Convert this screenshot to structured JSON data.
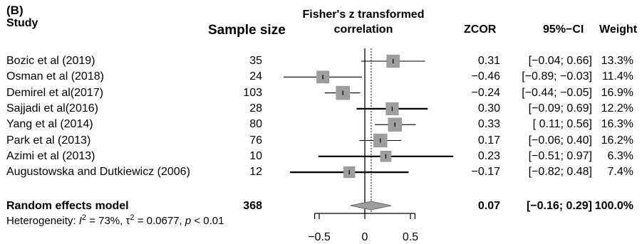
{
  "panel_label": "(B)",
  "headers": {
    "study": "Study",
    "sample_size": "Sample size",
    "plot_title_line1": "Fisher's z transformed",
    "plot_title_line2": "correlation",
    "zcor": "ZCOR",
    "ci": "95%−CI",
    "weight": "Weight"
  },
  "summary": {
    "label": "Random effects model",
    "n": "368",
    "zcor": "0.07",
    "ci": "[−0.16; 0.29]",
    "weight": "100.0%"
  },
  "heterogeneity": {
    "prefix": "Heterogeneity: ",
    "i2_symbol": "I",
    "i2_value": " = 73%, ",
    "tau2_symbol": "τ",
    "tau2_value": " = 0.0677, ",
    "p_symbol": "p",
    "p_value": " < 0.01"
  },
  "chart_data": {
    "type": "forest",
    "xlim": [
      -0.6,
      0.6
    ],
    "xticks": [
      -0.5,
      0,
      0.5
    ],
    "xtick_labels": [
      "−0.5",
      "0",
      "0.5"
    ],
    "null_line": 0,
    "pooled_line": 0.07,
    "studies": [
      {
        "name": "Bozic et al (2019)",
        "n": "35",
        "zcor": 0.31,
        "lo": -0.04,
        "hi": 0.66,
        "zcor_text": "0.31",
        "ci_text": "[−0.04; 0.66]",
        "weight": 13.3,
        "weight_text": "13.3%"
      },
      {
        "name": "Osman et al (2018)",
        "n": "24",
        "zcor": -0.46,
        "lo": -0.89,
        "hi": -0.03,
        "zcor_text": "−0.46",
        "ci_text": "[−0.89; −0.03]",
        "weight": 11.4,
        "weight_text": "11.4%"
      },
      {
        "name": "Demirel et al(2017)",
        "n": "103",
        "zcor": -0.24,
        "lo": -0.44,
        "hi": -0.05,
        "zcor_text": "−0.24",
        "ci_text": "[−0.44; −0.05]",
        "weight": 16.9,
        "weight_text": "16.9%"
      },
      {
        "name": "Sajjadi et al(2016)",
        "n": "28",
        "zcor": 0.3,
        "lo": -0.09,
        "hi": 0.69,
        "zcor_text": "0.30",
        "ci_text": "[−0.09; 0.69]",
        "weight": 12.2,
        "weight_text": "12.2%"
      },
      {
        "name": "Yang et al (2014)",
        "n": "80",
        "zcor": 0.33,
        "lo": 0.11,
        "hi": 0.56,
        "zcor_text": "0.33",
        "ci_text": "[ 0.11; 0.56]",
        "weight": 16.3,
        "weight_text": "16.3%"
      },
      {
        "name": "Park et al (2013)",
        "n": "76",
        "zcor": 0.17,
        "lo": -0.06,
        "hi": 0.4,
        "zcor_text": "0.17",
        "ci_text": "[−0.06; 0.40]",
        "weight": 16.2,
        "weight_text": "16.2%"
      },
      {
        "name": "Azimi et al (2013)",
        "n": "10",
        "zcor": 0.23,
        "lo": -0.51,
        "hi": 0.97,
        "zcor_text": "0.23",
        "ci_text": "[−0.51; 0.97]",
        "weight": 6.3,
        "weight_text": "6.3%"
      },
      {
        "name": "Augustowska and Dutkiewicz (2006)",
        "n": "12",
        "zcor": -0.17,
        "lo": -0.82,
        "hi": 0.48,
        "zcor_text": "−0.17",
        "ci_text": "[−0.82; 0.48]",
        "weight": 7.4,
        "weight_text": "7.4%"
      }
    ],
    "pooled": {
      "zcor": 0.07,
      "lo": -0.16,
      "hi": 0.29
    },
    "colors": {
      "box": "#9e9e9e",
      "box_edge": "#8a8a8a",
      "line": "#000000",
      "diamond": "#9e9e9e"
    }
  }
}
